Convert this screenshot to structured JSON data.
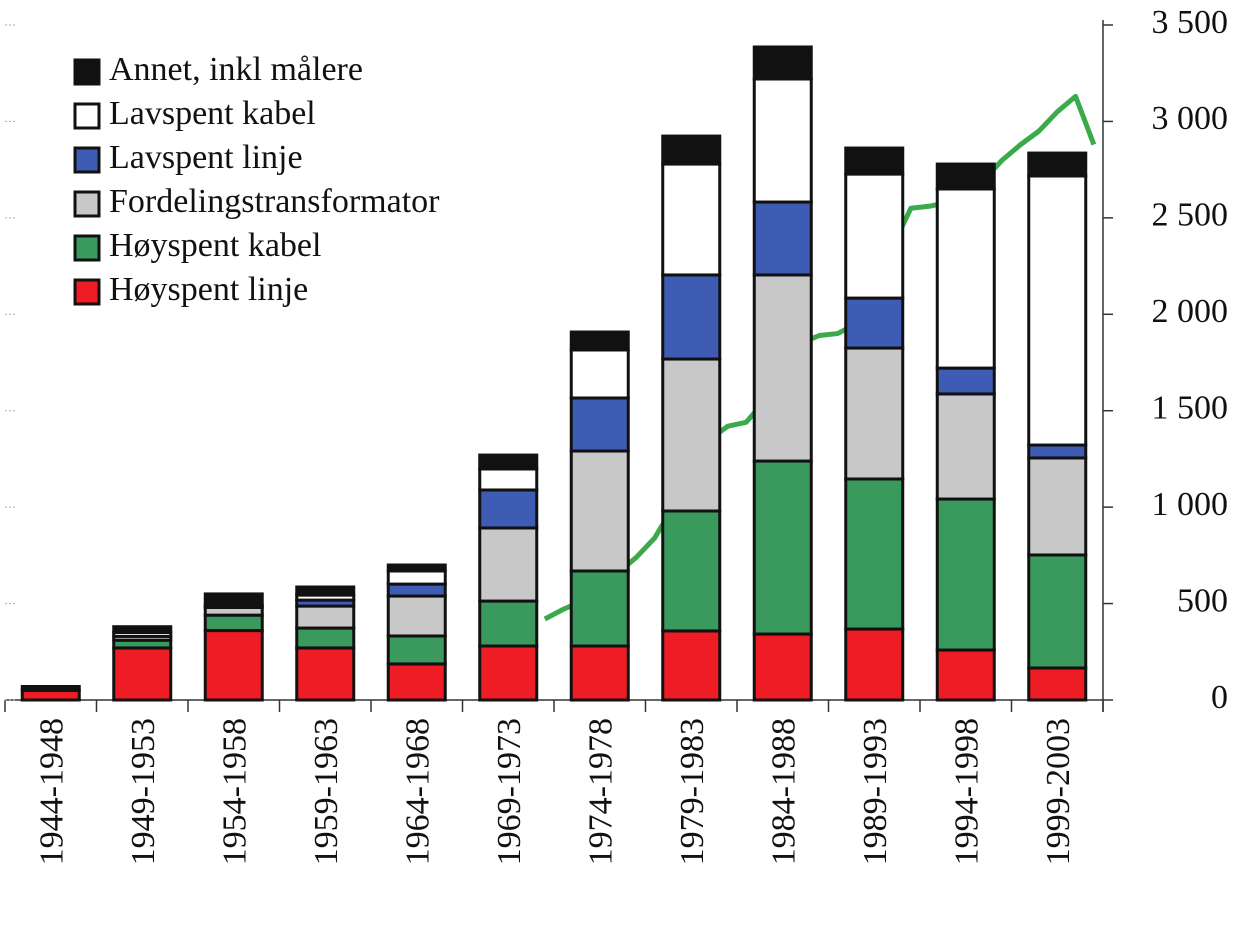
{
  "chart_data": {
    "type": "bar",
    "stacked": true,
    "categories": [
      "1944-1948",
      "1949-1953",
      "1954-1958",
      "1959-1963",
      "1964-1968",
      "1969-1973",
      "1974-1978",
      "1979-1983",
      "1984-1988",
      "1989-1993",
      "1994-1998",
      "1999-2003"
    ],
    "series": [
      {
        "name": "Høyspent linje",
        "color": "#ee1c25",
        "values": [
          50,
          270,
          360,
          270,
          187,
          280,
          280,
          358,
          342,
          368,
          259,
          166
        ]
      },
      {
        "name": "Høyspent kabel",
        "color": "#3a9a5e",
        "values": [
          0,
          40,
          80,
          103,
          145,
          233,
          389,
          622,
          897,
          778,
          783,
          586
        ]
      },
      {
        "name": "Fordelingstransformator",
        "color": "#c8c8c8",
        "values": [
          0,
          20,
          40,
          114,
          207,
          379,
          622,
          788,
          965,
          679,
          545,
          503
        ]
      },
      {
        "name": "Lavspent linje",
        "color": "#3f5cb5",
        "values": [
          0,
          0,
          0,
          31,
          62,
          197,
          275,
          436,
          378,
          259,
          134,
          67
        ]
      },
      {
        "name": "Lavspent kabel",
        "color": "#ffffff",
        "values": [
          0,
          20,
          10,
          26,
          68,
          109,
          249,
          575,
          638,
          643,
          929,
          1395
        ]
      },
      {
        "name": "Annet, inkl målere",
        "color": "#111111",
        "values": [
          20,
          30,
          60,
          42,
          31,
          72,
          93,
          145,
          166,
          135,
          129,
          119
        ]
      }
    ],
    "line": {
      "color": "#3aaa4a",
      "x": [
        1973,
        1974,
        1975,
        1976,
        1977,
        1978,
        1979,
        1980,
        1981,
        1982,
        1983,
        1984,
        1985,
        1986,
        1987,
        1988,
        1989,
        1990,
        1991,
        1992,
        1993,
        1994,
        1995,
        1996,
        1997,
        1998,
        1999,
        2000,
        2001,
        2002,
        2003
      ],
      "values": [
        420,
        470,
        510,
        580,
        660,
        740,
        840,
        1000,
        1200,
        1350,
        1420,
        1440,
        1550,
        1700,
        1850,
        1890,
        1900,
        1950,
        2150,
        2350,
        2550,
        2560,
        2580,
        2650,
        2700,
        2800,
        2880,
        2950,
        3050,
        3130,
        2880
      ]
    },
    "ylim": [
      0,
      3500
    ],
    "yticks": [
      0,
      500,
      {
        "value": 1000,
        "label": "1 000"
      },
      {
        "value": 1500,
        "label": "1 500"
      },
      {
        "value": 2000,
        "label": "2 000"
      },
      {
        "value": 2500,
        "label": "2 500"
      },
      {
        "value": 3000,
        "label": "3 000"
      },
      {
        "value": 3500,
        "label": "3 500"
      }
    ],
    "legend": "top-left"
  }
}
